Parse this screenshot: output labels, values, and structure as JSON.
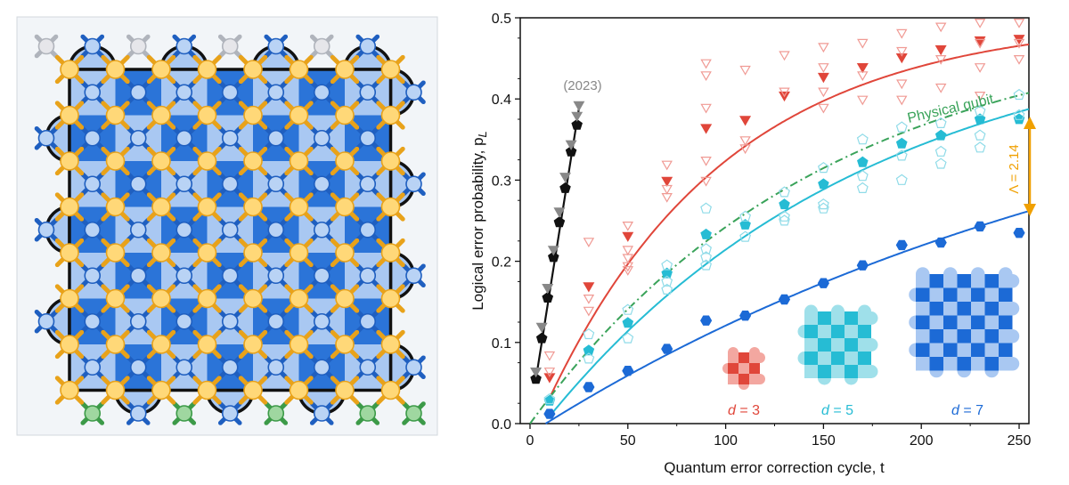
{
  "chart_data": [
    {
      "type": "diagram",
      "title": "",
      "description_label": "",
      "grid_size": 7,
      "colors": {
        "plaquette_dark": "#2b74d8",
        "plaquette_light": "#a9c8f2",
        "data_qubit": "#ffd878",
        "data_qubit_edge": "#e8a21a",
        "measure_qubit": "#b9d3f5",
        "measure_qubit_edge": "#1f5fc0",
        "unused_qubit": "#e6e6ea",
        "unused_qubit_edge": "#b0b4bc",
        "leakage_qubit": "#9fd7a0",
        "leakage_qubit_edge": "#3c9a48",
        "panel_bg": "#f2f5f8"
      }
    },
    {
      "type": "scatter",
      "xlabel": "Quantum error correction cycle, t",
      "ylabel": "Logical error probability, p",
      "ylabel_sub": "L",
      "xlim": [
        -5,
        255
      ],
      "ylim": [
        0,
        0.5
      ],
      "xticks": [
        0,
        50,
        100,
        150,
        200,
        250
      ],
      "yticks": [
        0.0,
        0.1,
        0.2,
        0.3,
        0.4,
        0.5
      ],
      "xtick_labels": [
        "0",
        "50",
        "100",
        "150",
        "200",
        "250"
      ],
      "ytick_labels": [
        "0.0",
        "0.1",
        "0.2",
        "0.3",
        "0.4",
        "0.5"
      ],
      "lambda_label": "Λ = 2.14",
      "annotation_2023": "(2023)",
      "physical_label": "Physical qubit",
      "legend": [
        {
          "d_label": "d",
          "eq": " = 3",
          "color": "#e0463a"
        },
        {
          "d_label": "d",
          "eq": " = 5",
          "color": "#26bcd4"
        },
        {
          "d_label": "d",
          "eq": " = 7",
          "color": "#1c6ad6"
        }
      ],
      "series": [
        {
          "name": "2023 d=5",
          "color": "#111111",
          "marker": "pentagon",
          "x": [
            3,
            6,
            9,
            12,
            15,
            18,
            21,
            24
          ],
          "y": [
            0.055,
            0.105,
            0.155,
            0.205,
            0.248,
            0.29,
            0.335,
            0.368
          ],
          "fit": {
            "A": 1.2,
            "eps": 0.0175,
            "x0": 0
          },
          "fit_range": [
            3,
            25
          ]
        },
        {
          "name": "2023 d=3 individual",
          "color": "#888888",
          "marker": "triangle_down_filled",
          "x": [
            3,
            6,
            9,
            12,
            15,
            18,
            21,
            24,
            25
          ],
          "y": [
            0.065,
            0.12,
            0.168,
            0.215,
            0.262,
            0.305,
            0.345,
            0.38,
            0.393
          ]
        },
        {
          "name": "d=3",
          "color": "#e0463a",
          "marker": "triangle_down",
          "x": [
            10,
            30,
            50,
            70,
            90,
            110,
            130,
            150,
            170,
            190,
            210,
            230,
            250
          ],
          "y": [
            0.058,
            0.17,
            0.232,
            0.3,
            0.365,
            0.375,
            0.405,
            0.428,
            0.44,
            0.452,
            0.462,
            0.473,
            0.475
          ],
          "fit": {
            "A": 0.5,
            "eps": 0.0054,
            "x0": 4
          },
          "fit_range": [
            10,
            255
          ]
        },
        {
          "name": "d=3 individual",
          "color": "#f09a94",
          "marker": "triangle_down_open",
          "x": [
            10,
            10,
            30,
            30,
            30,
            50,
            50,
            50,
            50,
            50,
            70,
            70,
            70,
            90,
            90,
            90,
            90,
            90,
            110,
            110,
            110,
            130,
            130,
            150,
            150,
            150,
            150,
            170,
            170,
            170,
            190,
            190,
            190,
            190,
            210,
            210,
            210,
            230,
            230,
            230,
            230,
            250,
            250,
            250
          ],
          "y": [
            0.085,
            0.065,
            0.225,
            0.155,
            0.14,
            0.245,
            0.215,
            0.205,
            0.195,
            0.19,
            0.32,
            0.29,
            0.28,
            0.445,
            0.43,
            0.39,
            0.325,
            0.3,
            0.437,
            0.35,
            0.34,
            0.455,
            0.41,
            0.465,
            0.44,
            0.41,
            0.39,
            0.47,
            0.43,
            0.4,
            0.482,
            0.46,
            0.42,
            0.4,
            0.49,
            0.45,
            0.415,
            0.495,
            0.47,
            0.44,
            0.405,
            0.495,
            0.47,
            0.45
          ]
        },
        {
          "name": "Physical qubit",
          "color": "#3aa35a",
          "marker": "none",
          "dash": "9,4,2,4",
          "fit": {
            "A": 0.5,
            "eps": 0.0033,
            "x0": 0
          },
          "fit_range": [
            0,
            255
          ]
        },
        {
          "name": "d=5",
          "color": "#26bcd4",
          "marker": "pentagon",
          "x": [
            10,
            30,
            50,
            70,
            90,
            110,
            130,
            150,
            170,
            190,
            210,
            230,
            250
          ],
          "y": [
            0.028,
            0.09,
            0.124,
            0.185,
            0.233,
            0.245,
            0.27,
            0.295,
            0.322,
            0.345,
            0.355,
            0.375,
            0.375
          ],
          "fit": {
            "A": 0.5,
            "eps": 0.003,
            "x0": 7
          },
          "fit_range": [
            10,
            255
          ]
        },
        {
          "name": "d=5 individual",
          "color": "#8fdbe8",
          "marker": "pentagon_open",
          "x": [
            10,
            30,
            30,
            50,
            50,
            70,
            70,
            70,
            90,
            90,
            90,
            90,
            110,
            110,
            130,
            130,
            130,
            150,
            150,
            150,
            170,
            170,
            170,
            190,
            190,
            190,
            210,
            210,
            210,
            230,
            230,
            230,
            250,
            250
          ],
          "y": [
            0.03,
            0.11,
            0.08,
            0.14,
            0.105,
            0.195,
            0.175,
            0.165,
            0.265,
            0.215,
            0.205,
            0.195,
            0.255,
            0.23,
            0.285,
            0.255,
            0.25,
            0.315,
            0.27,
            0.265,
            0.35,
            0.305,
            0.29,
            0.365,
            0.33,
            0.3,
            0.37,
            0.335,
            0.32,
            0.385,
            0.355,
            0.34,
            0.405,
            0.38
          ]
        },
        {
          "name": "d=7",
          "color": "#1c6ad6",
          "marker": "hexagon",
          "x": [
            10,
            30,
            50,
            70,
            90,
            110,
            130,
            150,
            170,
            190,
            210,
            230,
            250
          ],
          "y": [
            0.012,
            0.045,
            0.065,
            0.092,
            0.127,
            0.133,
            0.153,
            0.173,
            0.195,
            0.22,
            0.223,
            0.243,
            0.235
          ],
          "fit": {
            "A": 0.5,
            "eps": 0.0015,
            "x0": 8
          },
          "fit_range": [
            8,
            255
          ]
        }
      ]
    }
  ]
}
